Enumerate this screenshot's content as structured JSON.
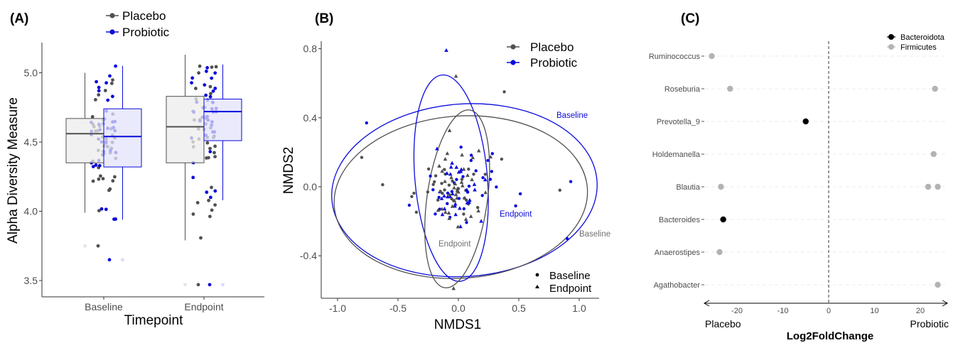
{
  "panels": {
    "a": "(A)",
    "b": "(B)",
    "c": "(C)"
  },
  "colors": {
    "placebo": "#505050",
    "probiotic": "#0a0adc",
    "bacteroidota": "#000000",
    "firmicutes": "#b3b3b3"
  },
  "chart_data": [
    {
      "type": "box",
      "title": "",
      "xlabel": "Timepoint",
      "ylabel": "Alpha Diversity Measure",
      "ylim": [
        3.43,
        5.22
      ],
      "yticks": [
        "3.5",
        "4.0",
        "4.5",
        "5.0"
      ],
      "categories": [
        "Baseline",
        "Endpoint"
      ],
      "legend": [
        "Placebo",
        "Probiotic"
      ],
      "series": [
        {
          "name": "Placebo",
          "boxes": [
            {
              "category": "Baseline",
              "q1": 4.35,
              "median": 4.56,
              "q3": 4.67,
              "whisker_low": 3.99,
              "whisker_high": 5.0,
              "outliers": [
                3.75
              ]
            },
            {
              "category": "Endpoint",
              "q1": 4.35,
              "median": 4.61,
              "q3": 4.83,
              "whisker_low": 3.79,
              "whisker_high": 5.13,
              "outliers": [
                3.47
              ]
            }
          ]
        },
        {
          "name": "Probiotic",
          "boxes": [
            {
              "category": "Baseline",
              "q1": 4.32,
              "median": 4.54,
              "q3": 4.74,
              "whisker_low": 3.94,
              "whisker_high": 5.05,
              "outliers": [
                3.65
              ]
            },
            {
              "category": "Endpoint",
              "q1": 4.51,
              "median": 4.72,
              "q3": 4.81,
              "whisker_low": 4.08,
              "whisker_high": 5.06,
              "outliers": [
                3.47
              ]
            }
          ]
        }
      ]
    },
    {
      "type": "scatter",
      "title": "",
      "xlabel": "NMDS1",
      "ylabel": "NMDS2",
      "xlim": [
        -1.15,
        1.15
      ],
      "ylim": [
        -0.66,
        0.86
      ],
      "xticks": [
        "-1.0",
        "-0.5",
        "0.0",
        "0.5",
        "1.0"
      ],
      "yticks": [
        "-0.4",
        "0.0",
        "0.4",
        "0.8"
      ],
      "legend_color": [
        "Placebo",
        "Probiotic"
      ],
      "legend_shape": [
        "Baseline",
        "Endpoint"
      ],
      "ellipse_labels": {
        "probiotic_baseline": "Baseline",
        "placebo_baseline": "Baseline",
        "probiotic_endpoint": "Endpoint",
        "placebo_endpoint": "Endpoint"
      },
      "ellipses": [
        {
          "group": "Probiotic",
          "time": "Baseline",
          "cx": 0.05,
          "cy": -0.02,
          "rx": 1.1,
          "ry": 0.5,
          "angle": -4
        },
        {
          "group": "Placebo",
          "time": "Baseline",
          "cx": 0.02,
          "cy": -0.06,
          "rx": 1.05,
          "ry": 0.47,
          "angle": -4
        },
        {
          "group": "Probiotic",
          "time": "Endpoint",
          "cx": -0.06,
          "cy": 0.05,
          "rx": 0.3,
          "ry": 0.6,
          "angle": -5
        },
        {
          "group": "Placebo",
          "time": "Endpoint",
          "cx": -0.01,
          "cy": -0.07,
          "rx": 0.25,
          "ry": 0.52,
          "angle": 8
        }
      ]
    },
    {
      "type": "scatter",
      "title": "",
      "xlabel": "Log2FoldChange",
      "xlim": [
        -27,
        26
      ],
      "xticks": [
        "-20",
        "-10",
        "0",
        "10",
        "20"
      ],
      "direction_labels": [
        "Placebo",
        "Probiotic"
      ],
      "legend": [
        "Bacteroidota",
        "Firmicutes"
      ],
      "categories": [
        "Ruminococcus",
        "Roseburia",
        "Prevotella_9",
        "Holdemanella",
        "Blautia",
        "Bacteroides",
        "Anaerostipes",
        "Agathobacter"
      ],
      "points": [
        {
          "genus": "Ruminococcus",
          "phylum": "Firmicutes",
          "x": -25.5
        },
        {
          "genus": "Roseburia",
          "phylum": "Firmicutes",
          "x": -21.5
        },
        {
          "genus": "Roseburia",
          "phylum": "Firmicutes",
          "x": 23.2
        },
        {
          "genus": "Prevotella_9",
          "phylum": "Bacteroidota",
          "x": -5.0
        },
        {
          "genus": "Holdemanella",
          "phylum": "Firmicutes",
          "x": 22.9
        },
        {
          "genus": "Blautia",
          "phylum": "Firmicutes",
          "x": -23.5
        },
        {
          "genus": "Blautia",
          "phylum": "Firmicutes",
          "x": 21.7
        },
        {
          "genus": "Blautia",
          "phylum": "Firmicutes",
          "x": 23.8
        },
        {
          "genus": "Bacteroides",
          "phylum": "Bacteroidota",
          "x": -23.0
        },
        {
          "genus": "Anaerostipes",
          "phylum": "Firmicutes",
          "x": -23.8
        },
        {
          "genus": "Agathobacter",
          "phylum": "Firmicutes",
          "x": 23.8
        }
      ]
    }
  ]
}
